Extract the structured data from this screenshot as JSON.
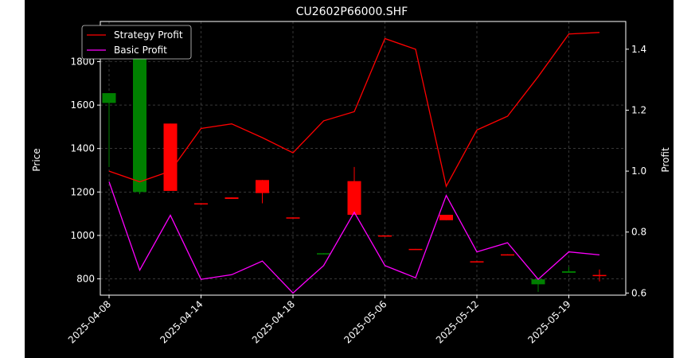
{
  "chart_data": {
    "type": "candlestick",
    "title": "CU2602P66000.SHF",
    "ylabel_left": "Price",
    "ylabel_right": "Profit",
    "ylim_left": [
      725,
      1985
    ],
    "ylim_right": [
      0.593,
      1.491
    ],
    "yticks_left": [
      "800",
      "1000",
      "1200",
      "1400",
      "1600",
      "1800"
    ],
    "yticks_right": [
      "0.6",
      "0.8",
      "1.0",
      "1.2",
      "1.4"
    ],
    "xtick_labels": [
      "2025-04-08",
      "2025-04-14",
      "2025-04-18",
      "2025-05-06",
      "2025-05-12",
      "2025-05-19"
    ],
    "xtick_index": [
      0,
      3,
      6,
      9,
      12,
      15
    ],
    "grid": true,
    "legend_position": "top-left",
    "colors": {
      "up": "#008000",
      "down": "#ff0000",
      "strategy": "#ff0000",
      "basic": "#ff00ff",
      "axis": "#ffffff",
      "grid": "#808080"
    },
    "candles": [
      {
        "i": 0,
        "open": 1610,
        "close": 1655,
        "high": 1655,
        "low": 1315
      },
      {
        "i": 1,
        "open": 1200,
        "close": 1870,
        "high": 1870,
        "low": 1190
      },
      {
        "i": 2,
        "open": 1515,
        "close": 1205,
        "high": 1515,
        "low": 1205
      },
      {
        "i": 3,
        "open": 1148,
        "close": 1143,
        "high": 1148,
        "low": 1143
      },
      {
        "i": 4,
        "open": 1175,
        "close": 1168,
        "high": 1175,
        "low": 1168
      },
      {
        "i": 5,
        "open": 1255,
        "close": 1195,
        "high": 1255,
        "low": 1148
      },
      {
        "i": 6,
        "open": 1083,
        "close": 1080,
        "high": 1083,
        "low": 1080
      },
      {
        "i": 7,
        "open": 913,
        "close": 918,
        "high": 918,
        "low": 913
      },
      {
        "i": 8,
        "open": 1250,
        "close": 1095,
        "high": 1315,
        "low": 1095
      },
      {
        "i": 9,
        "open": 1000,
        "close": 996,
        "high": 1000,
        "low": 996
      },
      {
        "i": 10,
        "open": 938,
        "close": 935,
        "high": 938,
        "low": 935
      },
      {
        "i": 11,
        "open": 1095,
        "close": 1070,
        "high": 1095,
        "low": 1070
      },
      {
        "i": 12,
        "open": 881,
        "close": 878,
        "high": 881,
        "low": 878
      },
      {
        "i": 13,
        "open": 913,
        "close": 908,
        "high": 913,
        "low": 908
      },
      {
        "i": 14,
        "open": 775,
        "close": 798,
        "high": 798,
        "low": 740
      },
      {
        "i": 15,
        "open": 828,
        "close": 835,
        "high": 855,
        "low": 828
      },
      {
        "i": 16,
        "open": 818,
        "close": 813,
        "high": 843,
        "low": 788
      }
    ],
    "series": [
      {
        "name": "Strategy Profit",
        "color": "#ff0000",
        "x": [
          0,
          1,
          2,
          3,
          4,
          5,
          6,
          7,
          8,
          9,
          10,
          11,
          12,
          13,
          14,
          15,
          16
        ],
        "values": [
          1.0,
          0.965,
          1.0,
          1.14,
          1.155,
          1.11,
          1.06,
          1.165,
          1.195,
          1.435,
          1.4,
          0.95,
          1.135,
          1.18,
          1.31,
          1.45,
          1.455
        ]
      },
      {
        "name": "Basic Profit",
        "color": "#ff00ff",
        "x": [
          0,
          1,
          2,
          3,
          4,
          5,
          6,
          7,
          8,
          9,
          10,
          11,
          12,
          13,
          14,
          15,
          16
        ],
        "values": [
          0.965,
          0.675,
          0.855,
          0.645,
          0.66,
          0.705,
          0.6,
          0.69,
          0.865,
          0.69,
          0.65,
          0.92,
          0.735,
          0.765,
          0.645,
          0.735,
          0.725
        ]
      }
    ]
  }
}
